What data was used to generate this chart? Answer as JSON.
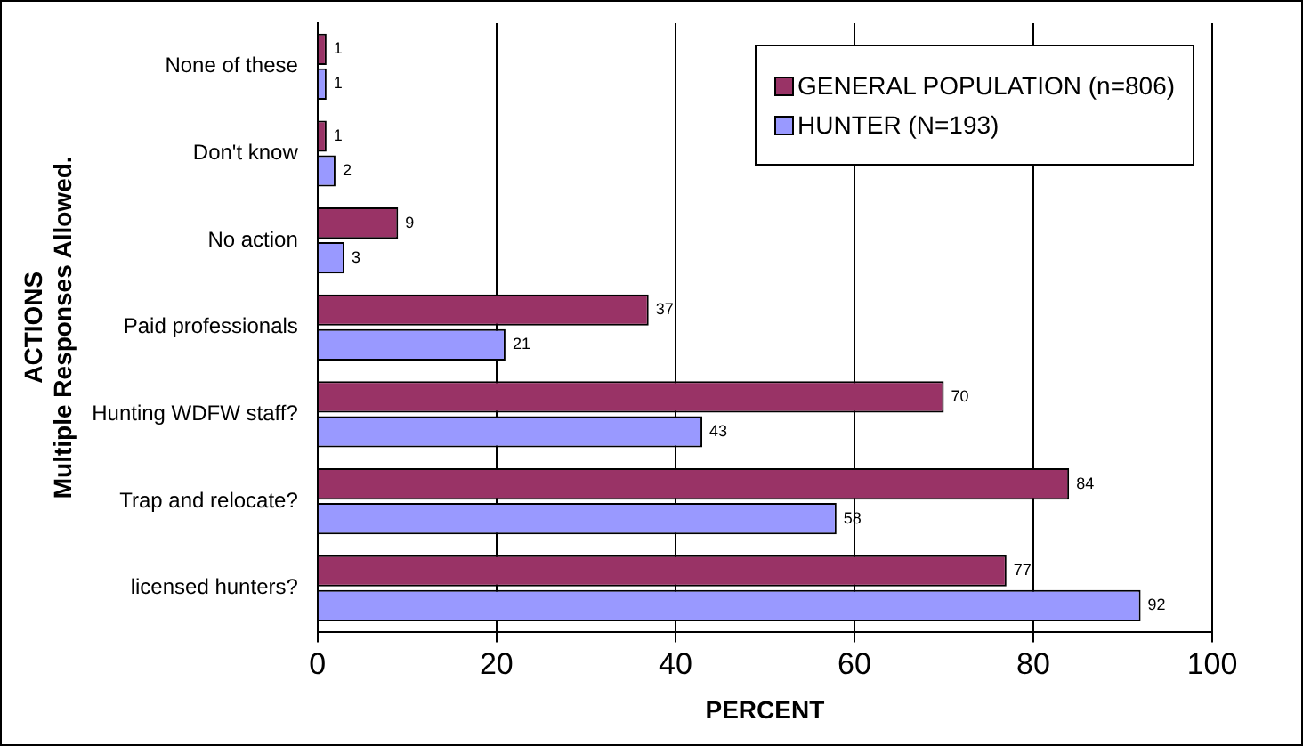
{
  "chart_data": {
    "type": "bar",
    "orientation": "horizontal",
    "xlabel": "PERCENT",
    "ylabel": "ACTIONS\nMultiple Responses Allowed.",
    "categories": [
      "None of these",
      "Don't know",
      "No action",
      "Paid professionals",
      "Hunting WDFW staff?",
      "Trap and relocate?",
      "licensed hunters?"
    ],
    "series": [
      {
        "name": "GENERAL POPULATION (n=806)",
        "color": "#993366",
        "values": [
          1,
          1,
          9,
          37,
          70,
          84,
          77
        ]
      },
      {
        "name": "HUNTER (N=193)",
        "color": "#9999ff",
        "values": [
          1,
          2,
          3,
          21,
          43,
          58,
          92
        ]
      }
    ],
    "xlim": [
      0,
      100
    ],
    "xticks": [
      0,
      20,
      40,
      60,
      80,
      100
    ],
    "grid": "x",
    "legend": "top right",
    "data_labels": true
  }
}
